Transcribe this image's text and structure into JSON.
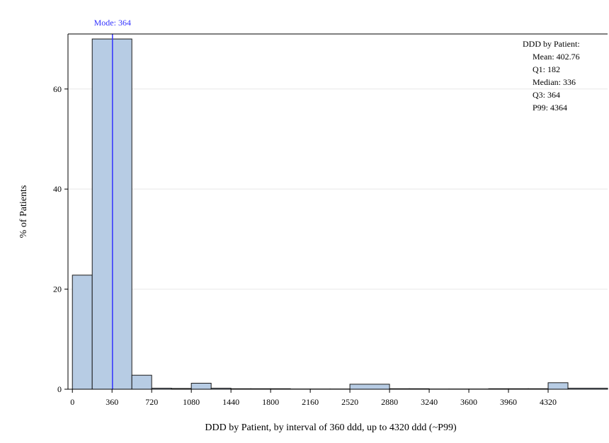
{
  "chart_data": {
    "type": "bar",
    "subtype": "histogram",
    "bin_width": 180,
    "bins": [
      {
        "start": 0,
        "end": 180,
        "value": 22.8
      },
      {
        "start": 180,
        "end": 540,
        "value": 70.0
      },
      {
        "start": 540,
        "end": 720,
        "value": 2.8
      },
      {
        "start": 720,
        "end": 900,
        "value": 0.2
      },
      {
        "start": 900,
        "end": 1080,
        "value": 0.15
      },
      {
        "start": 1080,
        "end": 1260,
        "value": 1.2
      },
      {
        "start": 1260,
        "end": 1440,
        "value": 0.2
      },
      {
        "start": 1440,
        "end": 1620,
        "value": 0.1
      },
      {
        "start": 1620,
        "end": 1800,
        "value": 0.1
      },
      {
        "start": 1800,
        "end": 1980,
        "value": 0.1
      },
      {
        "start": 1980,
        "end": 2160,
        "value": 0.05
      },
      {
        "start": 2160,
        "end": 2340,
        "value": 0.05
      },
      {
        "start": 2340,
        "end": 2520,
        "value": 0.05
      },
      {
        "start": 2520,
        "end": 2880,
        "value": 1.0
      },
      {
        "start": 2880,
        "end": 3060,
        "value": 0.1
      },
      {
        "start": 3060,
        "end": 3240,
        "value": 0.1
      },
      {
        "start": 3240,
        "end": 3420,
        "value": 0.05
      },
      {
        "start": 3420,
        "end": 3600,
        "value": 0.05
      },
      {
        "start": 3600,
        "end": 3780,
        "value": 0.05
      },
      {
        "start": 3780,
        "end": 3960,
        "value": 0.1
      },
      {
        "start": 3960,
        "end": 4140,
        "value": 0.1
      },
      {
        "start": 4140,
        "end": 4320,
        "value": 0.1
      },
      {
        "start": 4320,
        "end": 4500,
        "value": 1.3
      },
      {
        "start": 4500,
        "end": 4860,
        "value": 0.2
      }
    ],
    "xlim": [
      -40,
      4860
    ],
    "ylim": [
      0,
      71
    ],
    "xticks": [
      0,
      360,
      720,
      1080,
      1440,
      1800,
      2160,
      2520,
      2880,
      3240,
      3600,
      3960,
      4320
    ],
    "xtick_labels": [
      "0",
      "360",
      "720",
      "1080",
      "1440",
      "1800",
      "2160",
      "2520",
      "2880",
      "3240",
      "3600",
      "3960",
      "4320"
    ],
    "yticks": [
      0,
      20,
      40,
      60
    ],
    "ytick_labels": [
      "0",
      "20",
      "40",
      "60"
    ],
    "xlabel": "DDD by Patient, by interval of 360 ddd, up to 4320 ddd (~P99)",
    "ylabel": "% of Patients",
    "mode": {
      "value": 364,
      "label": "Mode: 364"
    },
    "stats_box": {
      "title": "DDD by Patient:",
      "lines": [
        "Mean: 402.76",
        "Q1: 182",
        "Median: 336",
        "Q3: 364",
        "P99: 4364"
      ]
    },
    "grid": true,
    "colors": {
      "bar_fill": "#b7cce4",
      "bar_stroke": "#1a1a1a",
      "mode_line": "#3333ff",
      "grid": "#e8e8e8"
    }
  }
}
